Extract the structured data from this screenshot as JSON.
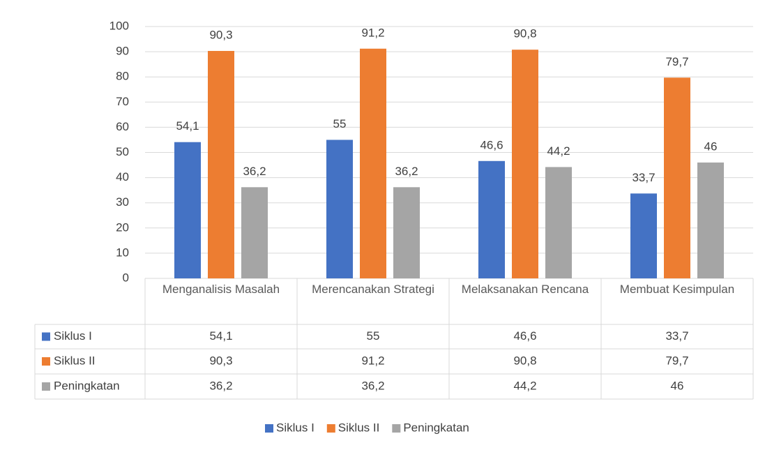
{
  "chart_data": {
    "type": "bar",
    "categories": [
      "Menganalisis Masalah",
      "Merencanakan Strategi",
      "Melaksanakan Rencana",
      "Membuat Kesimpulan"
    ],
    "series": [
      {
        "name": "Siklus I",
        "color": "#4472c4",
        "values": [
          54.1,
          55,
          46.6,
          33.7
        ],
        "value_labels": [
          "54,1",
          "55",
          "46,6",
          "33,7"
        ]
      },
      {
        "name": "Siklus II",
        "color": "#ed7d31",
        "values": [
          90.3,
          91.2,
          90.8,
          79.7
        ],
        "value_labels": [
          "90,3",
          "91,2",
          "90,8",
          "79,7"
        ]
      },
      {
        "name": "Peningkatan",
        "color": "#a5a5a5",
        "values": [
          36.2,
          36.2,
          44.2,
          46
        ],
        "value_labels": [
          "36,2",
          "36,2",
          "44,2",
          "46"
        ]
      }
    ],
    "ylim": [
      0,
      100
    ],
    "yticks": [
      0,
      10,
      20,
      30,
      40,
      50,
      60,
      70,
      80,
      90,
      100
    ],
    "grid": true,
    "legend": "bottom"
  }
}
